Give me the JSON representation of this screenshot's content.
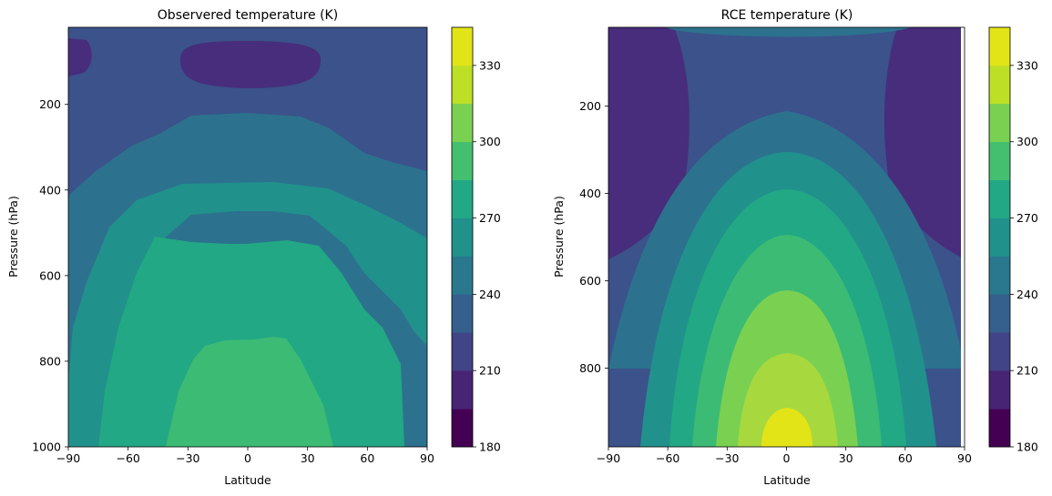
{
  "chart_data": [
    {
      "type": "contour",
      "title": "Observered temperature (K)",
      "xlabel": "Latitude",
      "ylabel": "Pressure (hPa)",
      "xlim": [
        -90,
        90
      ],
      "ylim": [
        1000,
        20
      ],
      "y_inverted": true,
      "xticks": [
        "−90",
        "−60",
        "−30",
        "0",
        "30",
        "60",
        "90"
      ],
      "xtick_values": [
        -90,
        -60,
        -30,
        0,
        30,
        60,
        90
      ],
      "yticks": [
        "200",
        "400",
        "600",
        "800",
        "1000"
      ],
      "ytick_values": [
        200,
        400,
        600,
        800,
        1000
      ],
      "levels": [
        180,
        195,
        210,
        225,
        240,
        255,
        270,
        285,
        300,
        315,
        330,
        345
      ],
      "colorbar_ticks": [
        "180",
        "210",
        "240",
        "270",
        "300",
        "330"
      ],
      "colorbar_tick_values": [
        180,
        210,
        240,
        270,
        300,
        330
      ],
      "contour_lines": [
        {
          "level": 285,
          "points": [
            [
              -40,
              1000
            ],
            [
              -30,
              880
            ],
            [
              -20,
              790
            ],
            [
              -10,
              750
            ],
            [
              10,
              750
            ],
            [
              20,
              735
            ],
            [
              30,
              790
            ],
            [
              35,
              880
            ],
            [
              42,
              1000
            ]
          ]
        },
        {
          "level": 270,
          "points": [
            [
              -74,
              1000
            ],
            [
              -70,
              880
            ],
            [
              -60,
              720
            ],
            [
              -45,
              560
            ],
            [
              -30,
              520
            ],
            [
              0,
              515
            ],
            [
              30,
              520
            ],
            [
              45,
              570
            ],
            [
              55,
              680
            ],
            [
              60,
              740
            ],
            [
              63,
              880
            ],
            [
              66,
              1000
            ]
          ]
        },
        {
          "level": 255,
          "points": [
            [
              -90,
              1000
            ],
            [
              -86,
              800
            ],
            [
              -82,
              640
            ],
            [
              -75,
              520
            ],
            [
              -60,
              440
            ],
            [
              -45,
              390
            ],
            [
              -30,
              370
            ],
            [
              0,
              365
            ],
            [
              30,
              370
            ],
            [
              50,
              400
            ],
            [
              70,
              500
            ],
            [
              90,
              560
            ],
            [
              90,
              760
            ],
            [
              80,
              700
            ],
            [
              70,
              590
            ],
            [
              60,
              500
            ]
          ]
        },
        {
          "level": 240,
          "points": [
            [
              -90,
              420
            ],
            [
              -75,
              390
            ],
            [
              -60,
              320
            ],
            [
              -45,
              250
            ],
            [
              -30,
              220
            ],
            [
              0,
              215
            ],
            [
              30,
              230
            ],
            [
              50,
              290
            ],
            [
              70,
              320
            ],
            [
              90,
              340
            ]
          ]
        },
        {
          "level": 225,
          "points": [
            [
              -40,
              70
            ],
            [
              -30,
              40
            ],
            [
              0,
              35
            ],
            [
              30,
              40
            ],
            [
              40,
              70
            ],
            [
              35,
              100
            ],
            [
              0,
              110
            ],
            [
              -35,
              100
            ],
            [
              -40,
              70
            ]
          ]
        }
      ],
      "approx_values": {
        "surface_equator": 285,
        "surface_poles": 255,
        "upper_tropical_tropopause": 210
      }
    },
    {
      "type": "contour",
      "title": "RCE temperature (K)",
      "xlabel": "Latitude",
      "ylabel": "Pressure (hPa)",
      "xlim": [
        -90,
        90
      ],
      "ylim": [
        980,
        20
      ],
      "y_inverted": true,
      "xticks": [
        "−90",
        "−60",
        "−30",
        "0",
        "30",
        "60",
        "90"
      ],
      "xtick_values": [
        -90,
        -60,
        -30,
        0,
        30,
        60,
        90
      ],
      "yticks": [
        "200",
        "400",
        "600",
        "800"
      ],
      "ytick_values": [
        200,
        400,
        600,
        800
      ],
      "levels": [
        180,
        195,
        210,
        225,
        240,
        255,
        270,
        285,
        300,
        315,
        330,
        345
      ],
      "colorbar_ticks": [
        "180",
        "210",
        "240",
        "270",
        "300",
        "330"
      ],
      "colorbar_tick_values": [
        180,
        210,
        240,
        270,
        300,
        330
      ],
      "approx_values": {
        "surface_equator": 330,
        "surface_poles": 240,
        "upper_polar": 195
      }
    }
  ]
}
